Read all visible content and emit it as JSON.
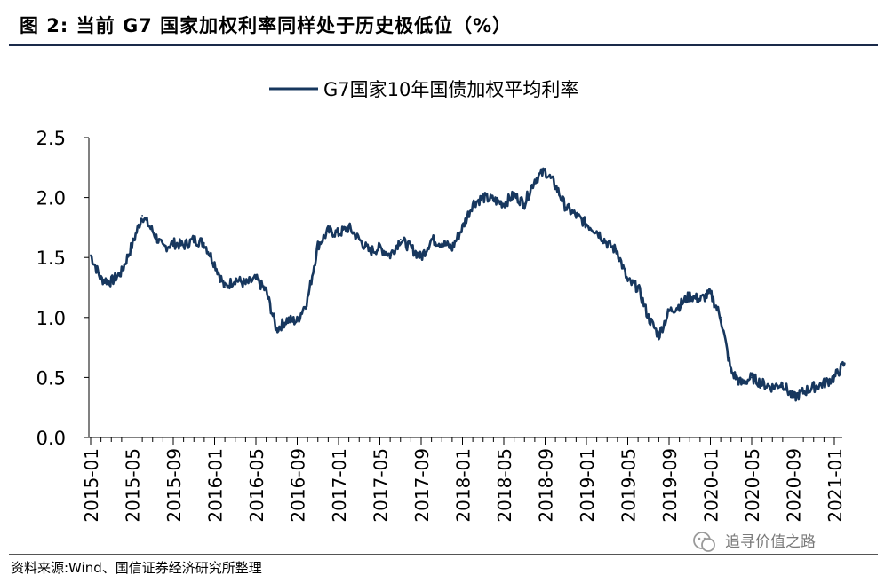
{
  "figure": {
    "title": "图 2:  当前 G7 国家加权利率同样处于历史极低位（%）",
    "source": "资料来源:Wind、国信证券经济研究所整理",
    "watermark": "追寻价值之路"
  },
  "colors": {
    "series": "#17375e",
    "axis": "#000000"
  },
  "chart_data": {
    "type": "line",
    "title": "",
    "xlabel": "",
    "ylabel": "",
    "legend": "top-center",
    "grid": false,
    "ylim": [
      0.0,
      2.5
    ],
    "yticks": [
      "0.0",
      "0.5",
      "1.0",
      "1.5",
      "2.0",
      "2.5"
    ],
    "xticks": [
      "2015-01",
      "2015-05",
      "2015-09",
      "2016-01",
      "2016-05",
      "2016-09",
      "2017-01",
      "2017-05",
      "2017-09",
      "2018-01",
      "2018-05",
      "2018-09",
      "2019-01",
      "2019-05",
      "2019-09",
      "2020-01",
      "2020-05",
      "2020-09",
      "2021-01"
    ],
    "series": [
      {
        "name": "G7国家10年国债加权平均利率",
        "x": [
          "2015-01",
          "2015-02",
          "2015-03",
          "2015-04",
          "2015-05",
          "2015-06",
          "2015-07",
          "2015-08",
          "2015-09",
          "2015-10",
          "2015-11",
          "2015-12",
          "2016-01",
          "2016-02",
          "2016-03",
          "2016-04",
          "2016-05",
          "2016-06",
          "2016-07",
          "2016-08",
          "2016-09",
          "2016-10",
          "2016-11",
          "2016-12",
          "2017-01",
          "2017-02",
          "2017-03",
          "2017-04",
          "2017-05",
          "2017-06",
          "2017-07",
          "2017-08",
          "2017-09",
          "2017-10",
          "2017-11",
          "2017-12",
          "2018-01",
          "2018-02",
          "2018-03",
          "2018-04",
          "2018-05",
          "2018-06",
          "2018-07",
          "2018-08",
          "2018-09",
          "2018-10",
          "2018-11",
          "2018-12",
          "2019-01",
          "2019-02",
          "2019-03",
          "2019-04",
          "2019-05",
          "2019-06",
          "2019-07",
          "2019-08",
          "2019-09",
          "2019-10",
          "2019-11",
          "2019-12",
          "2020-01",
          "2020-02",
          "2020-03",
          "2020-04",
          "2020-05",
          "2020-06",
          "2020-07",
          "2020-08",
          "2020-09",
          "2020-10",
          "2020-11",
          "2020-12",
          "2021-01",
          "2021-02"
        ],
        "values": [
          1.52,
          1.32,
          1.3,
          1.38,
          1.6,
          1.85,
          1.72,
          1.58,
          1.62,
          1.6,
          1.65,
          1.62,
          1.45,
          1.25,
          1.32,
          1.28,
          1.32,
          1.22,
          0.9,
          0.98,
          0.97,
          1.15,
          1.6,
          1.72,
          1.7,
          1.75,
          1.65,
          1.55,
          1.58,
          1.52,
          1.65,
          1.58,
          1.5,
          1.65,
          1.62,
          1.58,
          1.75,
          1.95,
          2.0,
          1.98,
          1.95,
          2.02,
          1.95,
          2.15,
          2.22,
          2.1,
          1.92,
          1.85,
          1.78,
          1.72,
          1.62,
          1.55,
          1.3,
          1.25,
          1.0,
          0.85,
          1.05,
          1.1,
          1.18,
          1.15,
          1.2,
          1.0,
          0.55,
          0.45,
          0.5,
          0.45,
          0.42,
          0.45,
          0.33,
          0.38,
          0.42,
          0.45,
          0.5,
          0.62
        ]
      }
    ]
  }
}
